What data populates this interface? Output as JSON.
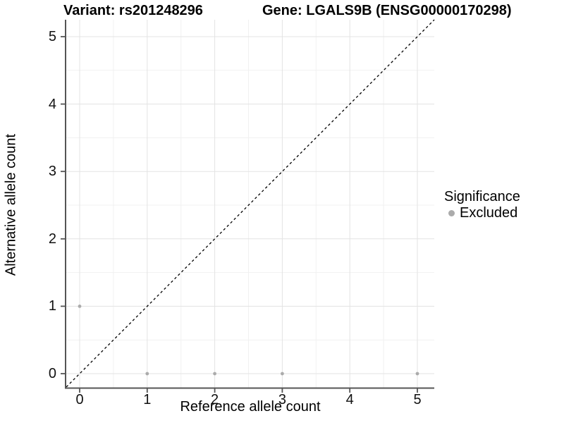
{
  "figure": {
    "title_left": "Variant: rs201248296",
    "title_right": "Gene: LGALS9B (ENSG00000170298)"
  },
  "axes": {
    "x_label": "Reference allele count",
    "y_label": "Alternative allele count",
    "x_ticks": [
      "0",
      "1",
      "2",
      "3",
      "4",
      "5"
    ],
    "y_ticks": [
      "0",
      "1",
      "2",
      "3",
      "4",
      "5"
    ]
  },
  "legend": {
    "title": "Significance",
    "items": [
      {
        "label": "Excluded",
        "color": "#ababab"
      }
    ]
  },
  "colors": {
    "point": "#ababab",
    "grid_major": "#e3e3e3",
    "grid_minor": "#f1f1f1",
    "axis_line": "#555555",
    "tick_mark": "#555555",
    "reference_line": "#000000",
    "background": "#ffffff"
  },
  "chart_data": {
    "type": "scatter",
    "title": "Variant: rs201248296   Gene: LGALS9B (ENSG00000170298)",
    "xlabel": "Reference allele count",
    "ylabel": "Alternative allele count",
    "xlim": [
      -0.2,
      5.25
    ],
    "ylim": [
      -0.25,
      5.25
    ],
    "x_major_ticks": [
      0,
      1,
      2,
      3,
      4,
      5
    ],
    "y_major_ticks": [
      0,
      1,
      2,
      3,
      4,
      5
    ],
    "x_minor_ticks": [
      0.5,
      1.5,
      2.5,
      3.5,
      4.5
    ],
    "y_minor_ticks": [
      0.5,
      1.5,
      2.5,
      3.5,
      4.5
    ],
    "grid": "major-and-minor",
    "legend_position": "right",
    "series": [
      {
        "name": "Excluded",
        "color": "#ababab",
        "marker": "circle",
        "points": [
          [
            0,
            1
          ],
          [
            1,
            0
          ],
          [
            2,
            0
          ],
          [
            3,
            0
          ],
          [
            5,
            0
          ]
        ]
      }
    ],
    "reference_line": {
      "type": "identity y=x",
      "style": "dashed",
      "color": "#000000"
    }
  }
}
